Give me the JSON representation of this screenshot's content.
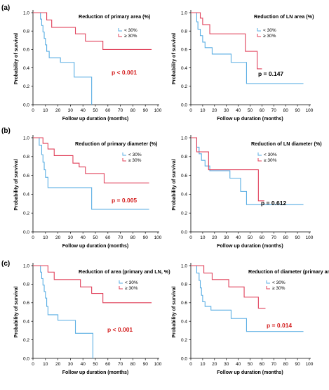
{
  "colors": {
    "low": "#5aaee3",
    "high": "#e0405a",
    "pvalue_red": "#d42020",
    "pvalue_black": "#000000",
    "axis": "#000000"
  },
  "row_labels": [
    "(a)",
    "(b)",
    "(c)"
  ],
  "chart_data": [
    {
      "type": "line",
      "step": true,
      "title": "Reduction of primary area (%)",
      "xlabel": "Follow up duration (months)",
      "ylabel": "Probability of survival",
      "xlim": [
        0,
        100
      ],
      "ylim": [
        0,
        1
      ],
      "xticks": [
        "0",
        "10",
        "20",
        "30",
        "40",
        "50",
        "60",
        "70",
        "80",
        "90",
        "100"
      ],
      "yticks": [
        "0.0",
        "0.2",
        "0.4",
        "0.6",
        "0.8",
        "1.0"
      ],
      "legend": [
        "< 30%",
        "≥ 30%"
      ],
      "legend_position": "top-right",
      "pvalue": "p < 0.001",
      "pvalue_color": "red",
      "series": [
        {
          "name": "< 30%",
          "color": "low",
          "steps": [
            [
              0,
              1.0
            ],
            [
              6,
              0.93
            ],
            [
              7,
              0.86
            ],
            [
              8,
              0.79
            ],
            [
              9,
              0.72
            ],
            [
              10,
              0.65
            ],
            [
              11,
              0.58
            ],
            [
              13,
              0.51
            ],
            [
              22,
              0.46
            ],
            [
              33,
              0.3
            ],
            [
              47,
              0.0
            ]
          ],
          "censor": []
        },
        {
          "name": "≥ 30%",
          "color": "high",
          "steps": [
            [
              0,
              1.0
            ],
            [
              11,
              0.92
            ],
            [
              15,
              0.84
            ],
            [
              34,
              0.77
            ],
            [
              42,
              0.69
            ],
            [
              56,
              0.6
            ],
            [
              95,
              0.6
            ]
          ],
          "censor": []
        }
      ]
    },
    {
      "type": "line",
      "step": true,
      "title": "Reduction of LN area (%)",
      "xlabel": "Follow up duration (months)",
      "ylabel": "Probability of survival",
      "xlim": [
        0,
        100
      ],
      "ylim": [
        0,
        1
      ],
      "xticks": [
        "0",
        "10",
        "20",
        "30",
        "40",
        "50",
        "60",
        "70",
        "80",
        "90",
        "100"
      ],
      "yticks": [
        "0.0",
        "0.2",
        "0.4",
        "0.6",
        "0.8",
        "1.0"
      ],
      "legend": [
        "< 30%",
        "≥ 30%"
      ],
      "legend_position": "top-right",
      "pvalue": "p = 0.147",
      "pvalue_color": "black",
      "series": [
        {
          "name": "< 30%",
          "color": "low",
          "steps": [
            [
              0,
              1.0
            ],
            [
              5,
              0.9
            ],
            [
              6,
              0.82
            ],
            [
              8,
              0.75
            ],
            [
              10,
              0.68
            ],
            [
              12,
              0.62
            ],
            [
              18,
              0.55
            ],
            [
              34,
              0.46
            ],
            [
              47,
              0.23
            ],
            [
              95,
              0.23
            ]
          ],
          "censor": []
        },
        {
          "name": "≥ 30%",
          "color": "high",
          "steps": [
            [
              0,
              1.0
            ],
            [
              8,
              0.94
            ],
            [
              10,
              0.87
            ],
            [
              16,
              0.77
            ],
            [
              46,
              0.58
            ],
            [
              56,
              0.39
            ],
            [
              60,
              0.39
            ]
          ],
          "censor": []
        }
      ]
    },
    {
      "type": "line",
      "step": true,
      "title": "Reduction of primary diameter (%)",
      "xlabel": "Follow up duration (months)",
      "ylabel": "Probability of survival",
      "xlim": [
        0,
        100
      ],
      "ylim": [
        0,
        1
      ],
      "xticks": [
        "0",
        "10",
        "20",
        "30",
        "40",
        "50",
        "60",
        "70",
        "80",
        "90",
        "100"
      ],
      "yticks": [
        "0.0",
        "0.2",
        "0.4",
        "0.6",
        "0.8",
        "1.0"
      ],
      "legend": [
        "< 30%",
        "≥ 30%"
      ],
      "legend_position": "top-right",
      "pvalue": "p = 0.005",
      "pvalue_color": "red",
      "series": [
        {
          "name": "< 30%",
          "color": "low",
          "steps": [
            [
              0,
              1.0
            ],
            [
              5,
              0.92
            ],
            [
              7,
              0.82
            ],
            [
              8,
              0.74
            ],
            [
              9,
              0.66
            ],
            [
              10,
              0.58
            ],
            [
              12,
              0.47
            ],
            [
              47,
              0.24
            ],
            [
              93,
              0.24
            ]
          ],
          "censor": []
        },
        {
          "name": "≥ 30%",
          "color": "high",
          "steps": [
            [
              0,
              1.0
            ],
            [
              8,
              0.94
            ],
            [
              12,
              0.88
            ],
            [
              17,
              0.81
            ],
            [
              32,
              0.73
            ],
            [
              37,
              0.69
            ],
            [
              42,
              0.62
            ],
            [
              57,
              0.52
            ],
            [
              93,
              0.52
            ]
          ],
          "censor": []
        }
      ]
    },
    {
      "type": "line",
      "step": true,
      "title": "Reduction of LN diameter (%)",
      "xlabel": "Follow up duration (months)",
      "ylabel": "Probability of survival",
      "xlim": [
        0,
        100
      ],
      "ylim": [
        0,
        1
      ],
      "xticks": [
        "0",
        "10",
        "20",
        "30",
        "40",
        "50",
        "60",
        "70",
        "80",
        "90",
        "100"
      ],
      "yticks": [
        "0.0",
        "0.2",
        "0.4",
        "0.6",
        "0.8",
        "1.0"
      ],
      "legend": [
        "< 30%",
        "≥ 30%"
      ],
      "legend_position": "top-right",
      "pvalue": "p = 0.612",
      "pvalue_color": "black",
      "series": [
        {
          "name": "< 30%",
          "color": "low",
          "steps": [
            [
              0,
              1.0
            ],
            [
              5,
              0.9
            ],
            [
              7,
              0.83
            ],
            [
              9,
              0.76
            ],
            [
              12,
              0.7
            ],
            [
              16,
              0.65
            ],
            [
              33,
              0.57
            ],
            [
              42,
              0.43
            ],
            [
              47,
              0.29
            ],
            [
              95,
              0.29
            ]
          ],
          "censor": []
        },
        {
          "name": "≥ 30%",
          "color": "high",
          "steps": [
            [
              0,
              1.0
            ],
            [
              5,
              0.85
            ],
            [
              15,
              0.66
            ],
            [
              57,
              0.33
            ],
            [
              62,
              0.33
            ]
          ],
          "censor": []
        }
      ]
    },
    {
      "type": "line",
      "step": true,
      "title": "Reduction of area (primary and LN, %)",
      "xlabel": "Follow up duration (months)",
      "ylabel": "Probability of survival",
      "xlim": [
        0,
        100
      ],
      "ylim": [
        0,
        1
      ],
      "xticks": [
        "0",
        "10",
        "20",
        "30",
        "40",
        "50",
        "60",
        "70",
        "80",
        "90",
        "100"
      ],
      "yticks": [
        "0.0",
        "0.2",
        "0.4",
        "0.6",
        "0.8",
        "1.0"
      ],
      "legend": [
        "< 30%",
        "≥ 30%"
      ],
      "legend_position": "top-right",
      "pvalue": "p < 0.001",
      "pvalue_color": "red",
      "series": [
        {
          "name": "< 30%",
          "color": "low",
          "steps": [
            [
              0,
              1.0
            ],
            [
              6,
              0.93
            ],
            [
              7,
              0.86
            ],
            [
              8,
              0.79
            ],
            [
              9,
              0.72
            ],
            [
              10,
              0.65
            ],
            [
              11,
              0.56
            ],
            [
              12,
              0.47
            ],
            [
              20,
              0.41
            ],
            [
              34,
              0.27
            ],
            [
              48,
              0.0
            ]
          ],
          "censor": []
        },
        {
          "name": "≥ 30%",
          "color": "high",
          "steps": [
            [
              0,
              1.0
            ],
            [
              12,
              0.93
            ],
            [
              17,
              0.85
            ],
            [
              38,
              0.77
            ],
            [
              47,
              0.7
            ],
            [
              56,
              0.6
            ],
            [
              95,
              0.6
            ]
          ],
          "censor": []
        }
      ]
    },
    {
      "type": "line",
      "step": true,
      "title": "Reduction of diameter (primary and LN, %)",
      "xlabel": "Follow up duration (months)",
      "ylabel": "Probability of survival",
      "xlim": [
        0,
        100
      ],
      "ylim": [
        0,
        1
      ],
      "xticks": [
        "0",
        "10",
        "20",
        "30",
        "40",
        "50",
        "60",
        "70",
        "80",
        "90",
        "100"
      ],
      "yticks": [
        "0.0",
        "0.2",
        "0.4",
        "0.6",
        "0.8",
        "1.0"
      ],
      "legend": [
        "< 30%",
        "≥ 30%"
      ],
      "legend_position": "top-right",
      "pvalue": "p = 0.014",
      "pvalue_color": "red",
      "series": [
        {
          "name": "< 30%",
          "color": "low",
          "steps": [
            [
              0,
              1.0
            ],
            [
              5,
              0.92
            ],
            [
              7,
              0.84
            ],
            [
              8,
              0.76
            ],
            [
              9,
              0.68
            ],
            [
              10,
              0.61
            ],
            [
              12,
              0.56
            ],
            [
              17,
              0.52
            ],
            [
              34,
              0.43
            ],
            [
              47,
              0.29
            ],
            [
              95,
              0.29
            ]
          ],
          "censor": []
        },
        {
          "name": "≥ 30%",
          "color": "high",
          "steps": [
            [
              0,
              1.0
            ],
            [
              11,
              0.92
            ],
            [
              18,
              0.85
            ],
            [
              32,
              0.77
            ],
            [
              45,
              0.66
            ],
            [
              57,
              0.54
            ],
            [
              63,
              0.54
            ]
          ],
          "censor": []
        }
      ]
    }
  ]
}
